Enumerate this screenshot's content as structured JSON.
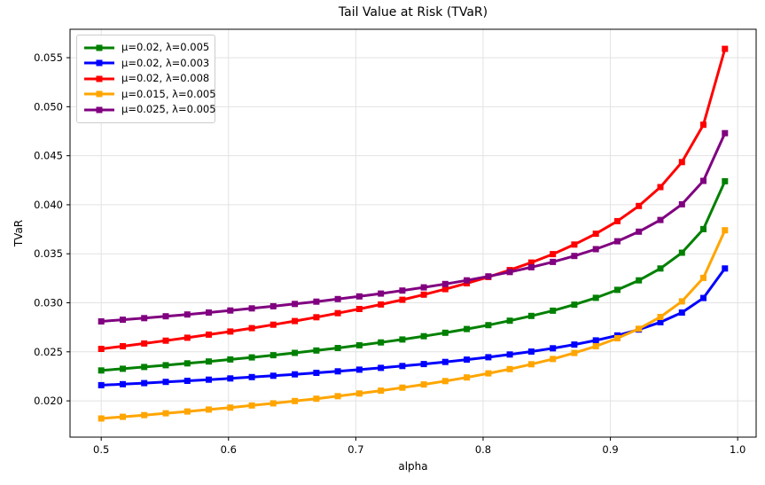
{
  "chart_data": {
    "type": "line",
    "title": "Tail Value at Risk (TVaR)",
    "xlabel": "alpha",
    "ylabel": "TVaR",
    "grid": true,
    "legend_position": "upper left",
    "marker": "square",
    "xlim": [
      0.4755,
      1.0145
    ],
    "ylim": [
      0.0163,
      0.0579
    ],
    "x_ticks": [
      0.5,
      0.6,
      0.7,
      0.8,
      0.9,
      1.0
    ],
    "x_tick_labels": [
      "0.5",
      "0.6",
      "0.7",
      "0.8",
      "0.9",
      "1.0"
    ],
    "y_ticks": [
      0.02,
      0.025,
      0.03,
      0.035,
      0.04,
      0.045,
      0.05,
      0.055
    ],
    "y_tick_labels": [
      "0.020",
      "0.025",
      "0.030",
      "0.035",
      "0.040",
      "0.045",
      "0.050",
      "0.055"
    ],
    "x": [
      0.5,
      0.5169,
      0.5338,
      0.5507,
      0.5676,
      0.5845,
      0.6014,
      0.6183,
      0.6352,
      0.6521,
      0.669,
      0.6859,
      0.7028,
      0.7197,
      0.7366,
      0.7534,
      0.7703,
      0.7872,
      0.8041,
      0.821,
      0.8379,
      0.8548,
      0.8717,
      0.8886,
      0.9055,
      0.9224,
      0.9393,
      0.9562,
      0.9731,
      0.99
    ],
    "series": [
      {
        "label": "μ=0.02, λ=0.005",
        "color": "#008000",
        "values": [
          0.0231,
          0.02327,
          0.02345,
          0.02363,
          0.02382,
          0.02401,
          0.02422,
          0.02443,
          0.02466,
          0.02489,
          0.02514,
          0.02539,
          0.02567,
          0.02596,
          0.02626,
          0.02659,
          0.02694,
          0.02732,
          0.02772,
          0.02817,
          0.02866,
          0.0292,
          0.02981,
          0.03051,
          0.03132,
          0.03229,
          0.0335,
          0.03511,
          0.03752,
          0.0424
        ]
      },
      {
        "label": "μ=0.02, λ=0.003",
        "color": "#0000ff",
        "values": [
          0.0216,
          0.0217,
          0.02181,
          0.02193,
          0.02204,
          0.02216,
          0.02229,
          0.02242,
          0.02256,
          0.0227,
          0.02286,
          0.02301,
          0.02318,
          0.02336,
          0.02355,
          0.02375,
          0.02397,
          0.0242,
          0.02445,
          0.02473,
          0.02503,
          0.02536,
          0.02574,
          0.02617,
          0.02667,
          0.02727,
          0.02802,
          0.02901,
          0.03049,
          0.0335
        ]
      },
      {
        "label": "μ=0.02, λ=0.008",
        "color": "#ff0000",
        "values": [
          0.0253,
          0.02557,
          0.02585,
          0.02614,
          0.02644,
          0.02675,
          0.02707,
          0.02741,
          0.02777,
          0.02814,
          0.02853,
          0.02894,
          0.02937,
          0.02983,
          0.03031,
          0.03083,
          0.03139,
          0.03199,
          0.03263,
          0.03334,
          0.03411,
          0.03497,
          0.03594,
          0.03705,
          0.03833,
          0.03988,
          0.0418,
          0.04435,
          0.04816,
          0.0559
        ]
      },
      {
        "label": "μ=0.015, λ=0.005",
        "color": "#ffa500",
        "values": [
          0.0182,
          0.01837,
          0.01854,
          0.01873,
          0.01891,
          0.01911,
          0.01931,
          0.01953,
          0.01975,
          0.01998,
          0.02022,
          0.02048,
          0.02075,
          0.02104,
          0.02135,
          0.02167,
          0.02202,
          0.02239,
          0.0228,
          0.02324,
          0.02373,
          0.02427,
          0.02488,
          0.02557,
          0.02638,
          0.02735,
          0.02855,
          0.03015,
          0.03254,
          0.0374
        ]
      },
      {
        "label": "μ=0.025, λ=0.005",
        "color": "#800080",
        "values": [
          0.0281,
          0.02827,
          0.02844,
          0.02863,
          0.02881,
          0.02901,
          0.02921,
          0.02943,
          0.02965,
          0.02988,
          0.03012,
          0.03038,
          0.03065,
          0.03094,
          0.03125,
          0.03157,
          0.03192,
          0.03229,
          0.0327,
          0.03314,
          0.03363,
          0.03417,
          0.03478,
          0.03547,
          0.03628,
          0.03725,
          0.03845,
          0.04005,
          0.04244,
          0.0473
        ]
      }
    ],
    "style": {
      "grid_color": "#e2e2e2",
      "spine_color": "#000000",
      "line_width": 3,
      "marker_size": 7
    }
  }
}
